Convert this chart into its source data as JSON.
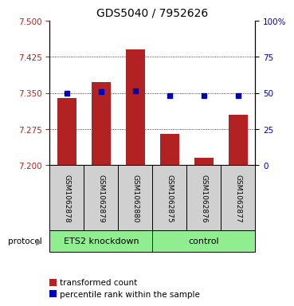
{
  "title": "GDS5040 / 7952626",
  "samples": [
    "GSM1062878",
    "GSM1062879",
    "GSM1062880",
    "GSM1062875",
    "GSM1062876",
    "GSM1062877"
  ],
  "bar_values": [
    7.34,
    7.372,
    7.44,
    7.265,
    7.215,
    7.305
  ],
  "percentile_values": [
    7.35,
    7.353,
    7.355,
    7.345,
    7.344,
    7.345
  ],
  "ylim": [
    7.2,
    7.5
  ],
  "yticks_left": [
    7.2,
    7.275,
    7.35,
    7.425,
    7.5
  ],
  "yticks_right_vals": [
    0,
    25,
    50,
    75,
    100
  ],
  "bar_color": "#b22222",
  "percentile_color": "#0000bb",
  "group_labels": [
    "ETS2 knockdown",
    "control"
  ],
  "protocol_label": "protocol",
  "legend_bar_label": "transformed count",
  "legend_pct_label": "percentile rank within the sample",
  "gray_bg_color": "#d0d0d0",
  "green_bg_color": "#90ee90",
  "title_fontsize": 10,
  "tick_fontsize": 7.5,
  "bar_width": 0.55,
  "sample_label_fontsize": 6.5,
  "group_label_fontsize": 8,
  "legend_fontsize": 7.5
}
